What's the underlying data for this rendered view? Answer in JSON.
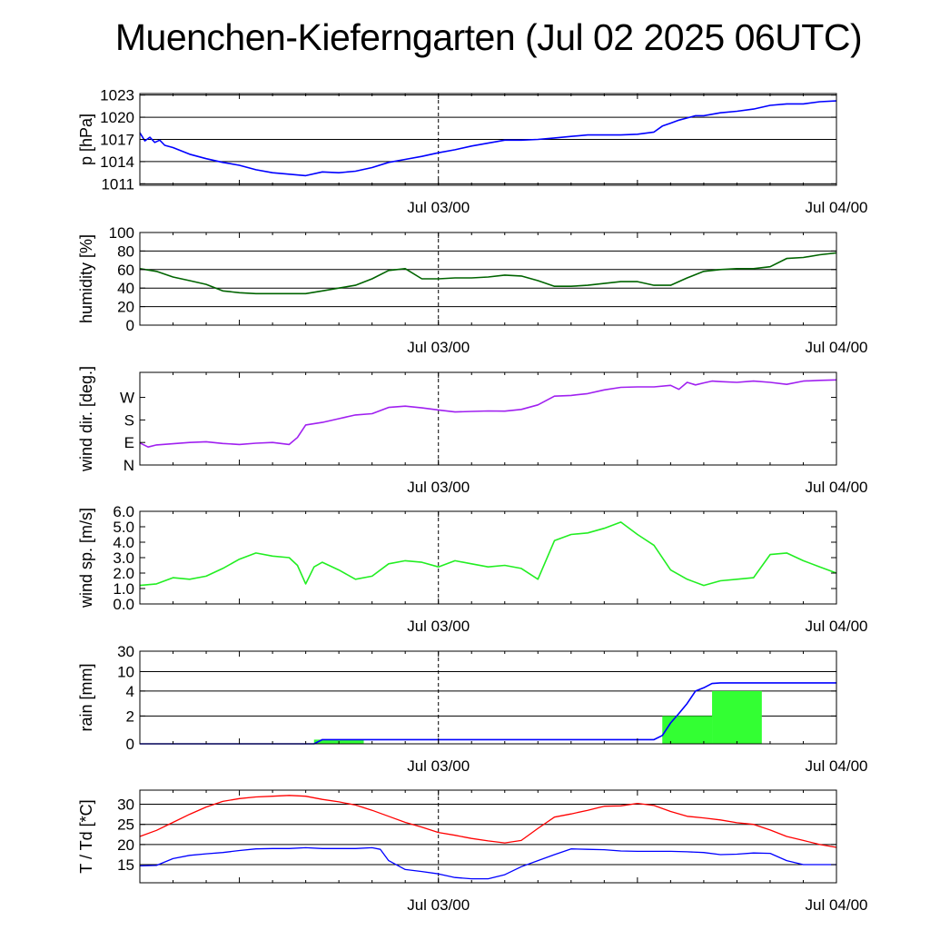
{
  "title": "Muenchen-Kieferngarten (Jul 02 2025 06UTC)",
  "x_tick_labels": [
    "Jul 03/00",
    "Jul 04/00"
  ],
  "chart_data": [
    {
      "type": "line",
      "ylabel": "p [hPa]",
      "ylim": [
        1010.8,
        1023.2
      ],
      "yticks": [
        1011,
        1014,
        1017,
        1020,
        1023
      ],
      "ytick_labels": [
        "1011",
        "1014",
        "1017",
        "1020",
        "1023"
      ],
      "grid": true,
      "x_ticks_hours": [
        18,
        42
      ],
      "xlim_hours": [
        0,
        42
      ],
      "marker_hours": 18,
      "series": [
        {
          "color": "#0000ff",
          "x": [
            0,
            0.3,
            0.6,
            0.9,
            1.2,
            1.5,
            2,
            3,
            4,
            5,
            6,
            7,
            8,
            9,
            10,
            11,
            12,
            13,
            14,
            15,
            16,
            17,
            18,
            19,
            20,
            21,
            22,
            23,
            24,
            25,
            26,
            27,
            28,
            29,
            30,
            31,
            31.5,
            32,
            32.5,
            33,
            33.5,
            34,
            34.5,
            35,
            36,
            37,
            38,
            39,
            40,
            41,
            42
          ],
          "y": [
            1017.9,
            1016.8,
            1017.3,
            1016.6,
            1016.9,
            1016.2,
            1015.9,
            1015.0,
            1014.4,
            1013.9,
            1013.5,
            1012.9,
            1012.5,
            1012.3,
            1012.1,
            1012.6,
            1012.5,
            1012.7,
            1013.2,
            1013.9,
            1014.3,
            1014.7,
            1015.2,
            1015.6,
            1016.1,
            1016.5,
            1016.9,
            1016.9,
            1017.0,
            1017.2,
            1017.4,
            1017.6,
            1017.6,
            1017.6,
            1017.7,
            1018.0,
            1018.8,
            1019.2,
            1019.6,
            1019.9,
            1020.2,
            1020.2,
            1020.4,
            1020.6,
            1020.8,
            1021.1,
            1021.6,
            1021.8,
            1021.8,
            1022.1,
            1022.2
          ]
        }
      ]
    },
    {
      "type": "line",
      "ylabel": "humidity [%]",
      "ylim": [
        0,
        100
      ],
      "yticks": [
        0,
        20,
        40,
        60,
        80,
        100
      ],
      "ytick_labels": [
        "0",
        "20",
        "40",
        "60",
        "80",
        "100"
      ],
      "grid": true,
      "x_ticks_hours": [
        18,
        42
      ],
      "xlim_hours": [
        0,
        42
      ],
      "marker_hours": 18,
      "series": [
        {
          "color": "#006400",
          "x": [
            0,
            1,
            2,
            3,
            4,
            5,
            6,
            7,
            8,
            9,
            10,
            11,
            12,
            13,
            14,
            15,
            16,
            17,
            18,
            19,
            20,
            21,
            22,
            23,
            24,
            25,
            26,
            27,
            28,
            29,
            30,
            31,
            32,
            33,
            34,
            35,
            36,
            37,
            38,
            39,
            40,
            41,
            42
          ],
          "y": [
            61,
            58,
            52,
            48,
            44,
            37,
            35,
            34,
            34,
            34,
            34,
            37,
            40,
            43,
            50,
            59,
            61,
            50,
            50,
            51,
            51,
            52,
            54,
            53,
            48,
            42,
            42,
            43,
            45,
            47,
            47,
            43,
            43,
            51,
            58,
            60,
            61,
            61,
            63,
            72,
            73,
            76,
            78
          ]
        }
      ]
    },
    {
      "type": "line",
      "ylabel": "wind dir. [deg.]",
      "ylim": [
        0,
        370
      ],
      "yticks": [
        0,
        90,
        180,
        270
      ],
      "ytick_labels": [
        "N",
        "E",
        "S",
        "W"
      ],
      "grid": false,
      "x_ticks_hours": [
        18,
        42
      ],
      "xlim_hours": [
        0,
        42
      ],
      "marker_hours": 18,
      "series": [
        {
          "color": "#a020f0",
          "x": [
            0,
            0.5,
            1,
            2,
            3,
            4,
            5,
            6,
            7,
            8,
            9,
            9.5,
            10,
            11,
            12,
            13,
            14,
            15,
            16,
            17,
            18,
            19,
            20,
            21,
            22,
            23,
            24,
            25,
            26,
            27,
            28,
            29,
            30,
            31,
            32,
            32.5,
            33,
            33.5,
            34,
            34.5,
            35,
            36,
            37,
            38,
            39,
            40,
            41,
            42
          ],
          "y": [
            88,
            72,
            80,
            85,
            90,
            93,
            86,
            82,
            87,
            90,
            82,
            110,
            160,
            170,
            185,
            200,
            205,
            230,
            235,
            228,
            220,
            212,
            214,
            216,
            215,
            222,
            240,
            275,
            278,
            285,
            300,
            310,
            312,
            312,
            318,
            302,
            330,
            320,
            328,
            335,
            333,
            330,
            335,
            330,
            322,
            335,
            338,
            340
          ]
        }
      ]
    },
    {
      "type": "line",
      "ylabel": "wind sp. [m/s]",
      "ylim": [
        0,
        6
      ],
      "yticks": [
        0,
        1,
        2,
        3,
        4,
        5,
        6
      ],
      "ytick_labels": [
        "0.0",
        "1.0",
        "2.0",
        "3.0",
        "4.0",
        "5.0",
        "6.0"
      ],
      "grid": false,
      "x_ticks_hours": [
        18,
        42
      ],
      "xlim_hours": [
        0,
        42
      ],
      "marker_hours": 18,
      "series": [
        {
          "color": "#22ee22",
          "x": [
            0,
            1,
            2,
            3,
            4,
            5,
            6,
            7,
            8,
            9,
            9.5,
            10,
            10.5,
            11,
            12,
            13,
            14,
            15,
            16,
            17,
            18,
            19,
            20,
            21,
            22,
            23,
            24,
            25,
            26,
            27,
            28,
            29,
            30,
            31,
            32,
            33,
            34,
            35,
            36,
            37,
            38,
            39,
            40,
            41,
            42
          ],
          "y": [
            1.2,
            1.3,
            1.7,
            1.6,
            1.8,
            2.3,
            2.9,
            3.3,
            3.1,
            3.0,
            2.5,
            1.3,
            2.4,
            2.7,
            2.2,
            1.6,
            1.8,
            2.6,
            2.8,
            2.7,
            2.4,
            2.8,
            2.6,
            2.4,
            2.5,
            2.3,
            1.6,
            4.1,
            4.5,
            4.6,
            4.9,
            5.3,
            4.5,
            3.8,
            2.2,
            1.6,
            1.2,
            1.5,
            1.6,
            1.7,
            3.2,
            3.3,
            2.8,
            2.4,
            2.0
          ]
        }
      ]
    },
    {
      "type": "line",
      "ylabel": "rain [mm]",
      "ylim": [
        0,
        30
      ],
      "yticks": [
        0,
        2,
        4,
        10,
        30
      ],
      "ytick_labels": [
        "0",
        "2",
        "4",
        "10",
        "30"
      ],
      "y_scale": "nonlinear",
      "grid": true,
      "x_ticks_hours": [
        18,
        42
      ],
      "xlim_hours": [
        0,
        42
      ],
      "marker_hours": 18,
      "bars": {
        "color": "#33ff33",
        "x_start": [
          10.5,
          31.5,
          34.5
        ],
        "x_end": [
          13.5,
          34.5,
          37.5
        ],
        "values": [
          0.3,
          2.0,
          4.0
        ]
      },
      "series": [
        {
          "color": "#0000ff",
          "x": [
            0,
            10.5,
            11,
            31,
            31.5,
            32,
            32.5,
            33,
            33.5,
            34,
            34.5,
            35,
            36,
            37,
            38,
            39,
            40,
            41,
            42
          ],
          "y": [
            0,
            0,
            0.3,
            0.3,
            0.6,
            1.5,
            2.2,
            3.0,
            4.0,
            5.0,
            6.3,
            6.5,
            6.5,
            6.5,
            6.5,
            6.5,
            6.5,
            6.5,
            6.5
          ]
        }
      ]
    },
    {
      "type": "line",
      "ylabel": "T / Td [*C]",
      "ylim": [
        10.5,
        33.5
      ],
      "yticks": [
        15,
        20,
        25,
        30
      ],
      "ytick_labels": [
        "15",
        "20",
        "25",
        "30"
      ],
      "grid": true,
      "x_ticks_hours": [
        18,
        42
      ],
      "xlim_hours": [
        0,
        42
      ],
      "marker_hours": 18,
      "series": [
        {
          "color": "#ff0000",
          "x": [
            0,
            1,
            2,
            3,
            4,
            5,
            6,
            7,
            8,
            9,
            10,
            11,
            12,
            13,
            14,
            15,
            16,
            17,
            18,
            19,
            20,
            21,
            22,
            23,
            24,
            25,
            26,
            27,
            28,
            29,
            30,
            31,
            32,
            33,
            34,
            35,
            36,
            37,
            38,
            39,
            40,
            41,
            42
          ],
          "y": [
            22.0,
            23.5,
            25.5,
            27.5,
            29.3,
            30.7,
            31.4,
            31.8,
            32.0,
            32.2,
            32.0,
            31.2,
            30.6,
            29.8,
            28.5,
            27.0,
            25.5,
            24.3,
            23.0,
            22.3,
            21.5,
            20.9,
            20.4,
            21.0,
            24.0,
            26.8,
            27.6,
            28.5,
            29.5,
            29.6,
            30.2,
            29.7,
            28.2,
            27.0,
            26.6,
            26.1,
            25.4,
            25.0,
            23.6,
            22.0,
            21.0,
            20.0,
            19.3
          ]
        },
        {
          "color": "#0000ff",
          "x": [
            0,
            1,
            2,
            3,
            4,
            5,
            6,
            7,
            8,
            9,
            10,
            11,
            12,
            13,
            14,
            14.5,
            15,
            16,
            17,
            18,
            19,
            20,
            21,
            22,
            23,
            24,
            25,
            26,
            27,
            28,
            29,
            30,
            31,
            32,
            33,
            34,
            35,
            36,
            37,
            38,
            39,
            40,
            41,
            42
          ],
          "y": [
            14.7,
            14.8,
            16.5,
            17.3,
            17.7,
            18.0,
            18.5,
            18.9,
            19.0,
            19.0,
            19.2,
            19.0,
            19.0,
            19.0,
            19.2,
            18.8,
            16.0,
            13.8,
            13.3,
            12.7,
            11.8,
            11.5,
            11.5,
            12.5,
            14.5,
            16.0,
            17.5,
            18.9,
            18.8,
            18.7,
            18.4,
            18.3,
            18.3,
            18.3,
            18.2,
            18.0,
            17.5,
            17.6,
            17.9,
            17.8,
            16.0,
            15.0,
            15.0,
            15.0
          ]
        }
      ]
    }
  ]
}
